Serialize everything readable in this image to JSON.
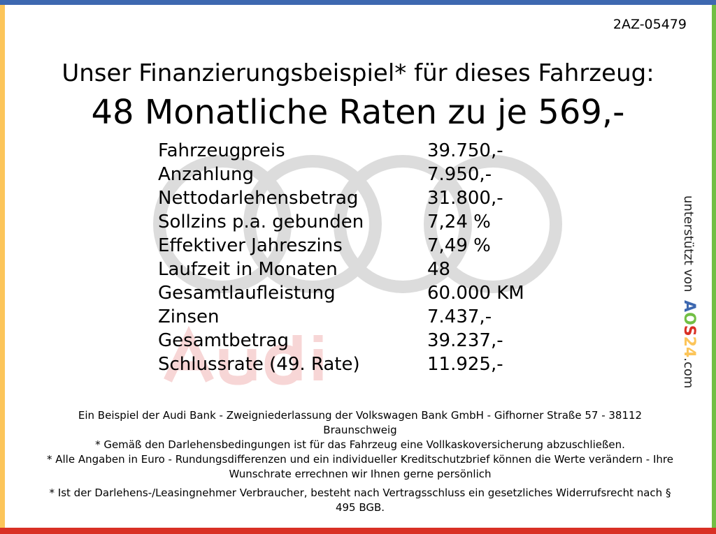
{
  "vehicle_code": "2AZ-05479",
  "title": "Unser Finanzierungsbeispiel* für dieses Fahrzeug:",
  "headline": "48 Monatliche Raten zu je 569,-",
  "watermark_text": "Audi",
  "rows": [
    {
      "label": "Fahrzeugpreis",
      "value": "39.750,-"
    },
    {
      "label": "Anzahlung",
      "value": "7.950,-"
    },
    {
      "label": "Nettodarlehensbetrag",
      "value": "31.800,-"
    },
    {
      "label": "Sollzins p.a. gebunden",
      "value": "7,24 %"
    },
    {
      "label": "Effektiver Jahreszins",
      "value": "7,49 %"
    },
    {
      "label": "Laufzeit in Monaten",
      "value": "48"
    },
    {
      "label": "Gesamtlaufleistung",
      "value": "60.000 KM"
    },
    {
      "label": "Zinsen",
      "value": "7.437,-"
    },
    {
      "label": "Gesamtbetrag",
      "value": "39.237,-"
    },
    {
      "label": "Schlussrate (49. Rate)",
      "value": "11.925,-"
    }
  ],
  "sidebar": {
    "supported_by": "unterstützt von",
    "logo": [
      "A",
      "O",
      "S",
      "2",
      "4"
    ],
    "logo_colors": [
      "#3d68b0",
      "#72bf44",
      "#d93025",
      "#fcc55a",
      "#fcc55a"
    ],
    "domain": ".com"
  },
  "footer": [
    "Ein Beispiel der Audi Bank -  Zweigniederlassung der Volkswagen Bank GmbH - Gifhorner Straße 57 - 38112 Braunschweig",
    "* Gemäß den Darlehensbedingungen ist für das Fahrzeug eine Vollkaskoversicherung abzuschließen.",
    "* Alle Angaben in Euro - Rundungsdifferenzen und ein individueller Kreditschutzbrief können die Werte verändern - Ihre Wunschrate errechnen wir Ihnen gerne persönlich",
    "* Ist der Darlehens-/Leasingnehmer Verbraucher, besteht nach Vertragsschluss ein gesetzliches Widerrufsrecht nach § 495 BGB."
  ],
  "colors": {
    "top": "#3d68b0",
    "left": "#fcc55a",
    "right": "#72bf44",
    "bottom": "#d93025"
  }
}
